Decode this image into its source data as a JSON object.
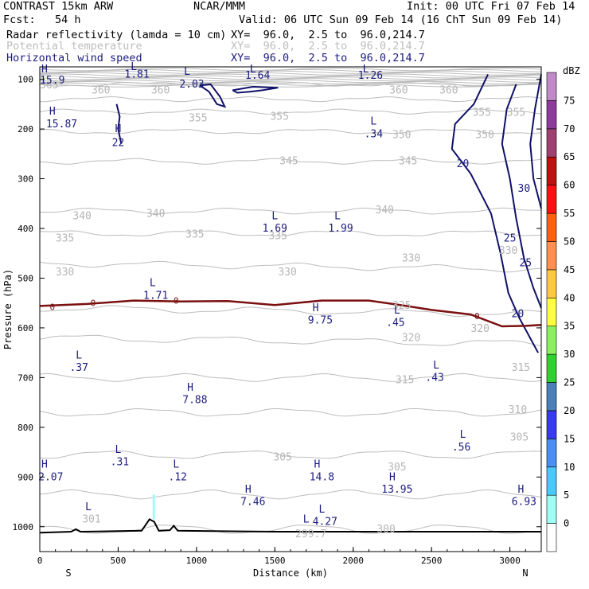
{
  "header": {
    "model": "CONTRAST 15km ARW",
    "org": "NCAR/MMM",
    "init": "Init: 00 UTC Fri 07 Feb 14",
    "fcst": "Fcst:   54 h",
    "valid": "Valid: 06 UTC Sun 09 Feb 14 (16 ChT Sun 09 Feb 14)"
  },
  "fields": [
    {
      "name": "Radar reflectivity (lamda = 10 cm)",
      "xy": "XY=  96.0,  2.5 to  96.0,214.7",
      "color": "#000000"
    },
    {
      "name": "Potential temperature",
      "xy": "XY=  96.0,  2.5 to  96.0,214.7",
      "color": "#bdbdbd"
    },
    {
      "name": "Horizontal wind speed",
      "xy": "XY=  96.0,  2.5 to  96.0,214.7",
      "color": "#1c1c80"
    }
  ],
  "colorbar": {
    "unit": "dBZ",
    "levels": [
      "0",
      "5",
      "10",
      "15",
      "20",
      "25",
      "30",
      "35",
      "40",
      "45",
      "50",
      "55",
      "60",
      "65",
      "70",
      "75"
    ],
    "colors": [
      "#ffffff",
      "#9ffff5",
      "#4cc8ff",
      "#4a90ee",
      "#3a3af0",
      "#4a80b8",
      "#30d030",
      "#8af060",
      "#ffff40",
      "#ffc840",
      "#ff9050",
      "#ff6010",
      "#ff1010",
      "#c01010",
      "#a04070",
      "#8e3a9c",
      "#c08ac8"
    ]
  },
  "chart_data": {
    "type": "cross-section",
    "xlabel": "Distance (km)",
    "ylabel": "Pressure (hPa)",
    "xlim": [
      0,
      3200
    ],
    "ylim": [
      1050,
      75
    ],
    "xticks": [
      "0",
      "500",
      "1000",
      "1500",
      "2000",
      "2500",
      "3000"
    ],
    "yticks": [
      "100",
      "200",
      "300",
      "400",
      "500",
      "600",
      "700",
      "800",
      "900",
      "1000"
    ],
    "end_labels": {
      "left": "S",
      "right": "N"
    },
    "zero_isotherm_label": "0",
    "theta_contours": [
      {
        "label": "365",
        "p": 110
      },
      {
        "label": "360",
        "p": 140
      },
      {
        "label": "355",
        "p": 165
      },
      {
        "label": "350",
        "p": 205
      },
      {
        "label": "345",
        "p": 265
      },
      {
        "label": "340",
        "p": 365
      },
      {
        "label": "335",
        "p": 410
      },
      {
        "label": "330",
        "p": 470
      },
      {
        "label": "325",
        "p": 560
      },
      {
        "label": "320",
        "p": 620
      },
      {
        "label": "315",
        "p": 700
      },
      {
        "label": "310",
        "p": 770
      },
      {
        "label": "305",
        "p": 855
      },
      {
        "label": "301",
        "p": 935
      },
      {
        "label": "300",
        "p": 1005
      }
    ],
    "theta_labels": [
      {
        "text": "365",
        "x": 60,
        "p": 112
      },
      {
        "text": "360",
        "x": 390,
        "p": 122
      },
      {
        "text": "360",
        "x": 770,
        "p": 122
      },
      {
        "text": "360",
        "x": 2290,
        "p": 122
      },
      {
        "text": "360",
        "x": 2610,
        "p": 122
      },
      {
        "text": "355",
        "x": 1010,
        "p": 178
      },
      {
        "text": "355",
        "x": 1530,
        "p": 175
      },
      {
        "text": "355",
        "x": 2820,
        "p": 167
      },
      {
        "text": "355",
        "x": 3040,
        "p": 167
      },
      {
        "text": "350",
        "x": 2310,
        "p": 212
      },
      {
        "text": "350",
        "x": 2840,
        "p": 212
      },
      {
        "text": "345",
        "x": 1590,
        "p": 265
      },
      {
        "text": "345",
        "x": 2350,
        "p": 265
      },
      {
        "text": "340",
        "x": 270,
        "p": 375
      },
      {
        "text": "340",
        "x": 740,
        "p": 370
      },
      {
        "text": "340",
        "x": 2200,
        "p": 363
      },
      {
        "text": "335",
        "x": 160,
        "p": 420
      },
      {
        "text": "335",
        "x": 990,
        "p": 412
      },
      {
        "text": "335",
        "x": 1520,
        "p": 415
      },
      {
        "text": "330",
        "x": 160,
        "p": 488
      },
      {
        "text": "330",
        "x": 1580,
        "p": 488
      },
      {
        "text": "330",
        "x": 2370,
        "p": 460
      },
      {
        "text": "330",
        "x": 2990,
        "p": 445
      },
      {
        "text": "325",
        "x": 2310,
        "p": 555
      },
      {
        "text": "320",
        "x": 2370,
        "p": 620
      },
      {
        "text": "320",
        "x": 2810,
        "p": 602
      },
      {
        "text": "315",
        "x": 2330,
        "p": 705
      },
      {
        "text": "315",
        "x": 3070,
        "p": 680
      },
      {
        "text": "310",
        "x": 3050,
        "p": 765
      },
      {
        "text": "305",
        "x": 1550,
        "p": 860
      },
      {
        "text": "305",
        "x": 2280,
        "p": 880
      },
      {
        "text": "305",
        "x": 3060,
        "p": 820
      },
      {
        "text": "301",
        "x": 330,
        "p": 985
      },
      {
        "text": "299.7",
        "x": 1730,
        "p": 1015
      },
      {
        "text": "300",
        "x": 2210,
        "p": 1005
      }
    ],
    "wind_contours": [
      {
        "label": "20"
      },
      {
        "label": "25"
      },
      {
        "label": "30"
      }
    ],
    "wind_labels": [
      {
        "text": "20",
        "x": 2700,
        "p": 270
      },
      {
        "text": "30",
        "x": 3090,
        "p": 320
      },
      {
        "text": "25",
        "x": 3000,
        "p": 420
      },
      {
        "text": "25",
        "x": 3100,
        "p": 470
      },
      {
        "text": "20",
        "x": 3050,
        "p": 572
      },
      {
        "text": "22",
        "x": 500,
        "p": 228
      }
    ],
    "extrema": [
      {
        "text": "H",
        "x": 30,
        "p": 80
      },
      {
        "text": "15.9",
        "x": 80,
        "p": 102
      },
      {
        "text": "L",
        "x": 600,
        "p": 75
      },
      {
        "text": "1.81",
        "x": 620,
        "p": 90
      },
      {
        "text": "L",
        "x": 940,
        "p": 85
      },
      {
        "text": "2.03",
        "x": 970,
        "p": 110
      },
      {
        "text": "L",
        "x": 1360,
        "p": 80
      },
      {
        "text": "1.64",
        "x": 1390,
        "p": 93
      },
      {
        "text": "L",
        "x": 2080,
        "p": 80
      },
      {
        "text": "1.26",
        "x": 2110,
        "p": 93
      },
      {
        "text": "H",
        "x": 80,
        "p": 165
      },
      {
        "text": "15.87",
        "x": 140,
        "p": 190
      },
      {
        "text": "H",
        "x": 500,
        "p": 200
      },
      {
        "text": "L",
        "x": 2130,
        "p": 185
      },
      {
        "text": ".34",
        "x": 2130,
        "p": 210
      },
      {
        "text": "L",
        "x": 1500,
        "p": 375
      },
      {
        "text": "1.69",
        "x": 1500,
        "p": 400
      },
      {
        "text": "L",
        "x": 1900,
        "p": 375
      },
      {
        "text": "1.99",
        "x": 1920,
        "p": 400
      },
      {
        "text": "L",
        "x": 720,
        "p": 510
      },
      {
        "text": "1.71",
        "x": 740,
        "p": 535
      },
      {
        "text": "H",
        "x": 1760,
        "p": 560
      },
      {
        "text": "9.75",
        "x": 1790,
        "p": 585
      },
      {
        "text": "L",
        "x": 2280,
        "p": 565
      },
      {
        "text": ".45",
        "x": 2270,
        "p": 590
      },
      {
        "text": "L",
        "x": 250,
        "p": 655
      },
      {
        "text": ".37",
        "x": 250,
        "p": 680
      },
      {
        "text": "L",
        "x": 2530,
        "p": 675
      },
      {
        "text": ".43",
        "x": 2520,
        "p": 700
      },
      {
        "text": "H",
        "x": 960,
        "p": 720
      },
      {
        "text": "7.88",
        "x": 990,
        "p": 745
      },
      {
        "text": "L",
        "x": 2700,
        "p": 815
      },
      {
        "text": ".56",
        "x": 2690,
        "p": 840
      },
      {
        "text": "L",
        "x": 500,
        "p": 845
      },
      {
        "text": ".31",
        "x": 510,
        "p": 870
      },
      {
        "text": "H",
        "x": 30,
        "p": 875
      },
      {
        "text": "2.07",
        "x": 70,
        "p": 900
      },
      {
        "text": "L",
        "x": 870,
        "p": 875
      },
      {
        "text": ".12",
        "x": 880,
        "p": 900
      },
      {
        "text": "H",
        "x": 1770,
        "p": 875
      },
      {
        "text": "14.8",
        "x": 1800,
        "p": 900
      },
      {
        "text": "H",
        "x": 2250,
        "p": 900
      },
      {
        "text": "13.95",
        "x": 2280,
        "p": 925
      },
      {
        "text": "H",
        "x": 1330,
        "p": 925
      },
      {
        "text": "7.46",
        "x": 1360,
        "p": 950
      },
      {
        "text": "H",
        "x": 3070,
        "p": 925
      },
      {
        "text": "6.93",
        "x": 3090,
        "p": 950
      },
      {
        "text": "L",
        "x": 310,
        "p": 960
      },
      {
        "text": "L",
        "x": 1800,
        "p": 965
      },
      {
        "text": "4.27",
        "x": 1820,
        "p": 990
      },
      {
        "text": "L",
        "x": 1700,
        "p": 985
      }
    ]
  }
}
